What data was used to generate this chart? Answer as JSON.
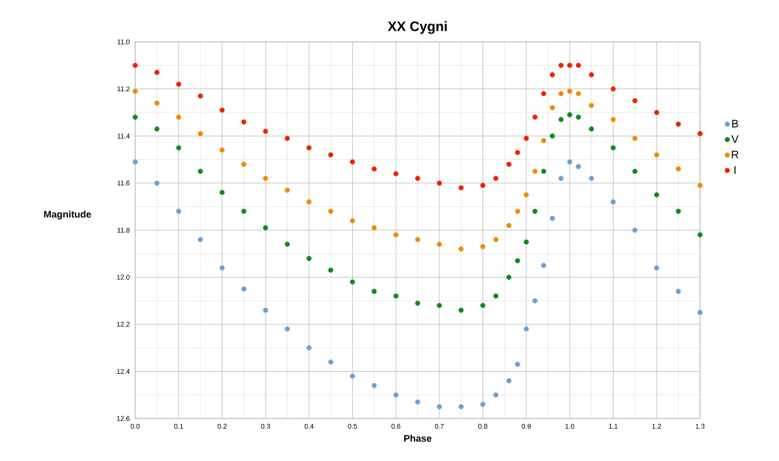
{
  "chart_data": {
    "type": "scatter",
    "title": "XX Cygni",
    "xlabel": "Phase",
    "ylabel": "Magnitude",
    "x": [
      0.0,
      0.05,
      0.1,
      0.15,
      0.2,
      0.25,
      0.3,
      0.35,
      0.4,
      0.45,
      0.5,
      0.55,
      0.6,
      0.65,
      0.7,
      0.75,
      0.8,
      0.83,
      0.86,
      0.88,
      0.9,
      0.92,
      0.94,
      0.96,
      0.98,
      1.0,
      1.02,
      1.05,
      1.1,
      1.15,
      1.2,
      1.25,
      1.3
    ],
    "series": [
      {
        "name": "B",
        "color": "#6e9fd1",
        "values": [
          11.51,
          11.6,
          11.72,
          11.84,
          11.96,
          12.05,
          12.14,
          12.22,
          12.3,
          12.36,
          12.42,
          12.46,
          12.5,
          12.53,
          12.55,
          12.55,
          12.54,
          12.5,
          12.44,
          12.37,
          12.22,
          12.1,
          11.95,
          11.75,
          11.58,
          11.51,
          11.53,
          11.58,
          11.68,
          11.8,
          11.96,
          12.06,
          12.15
        ]
      },
      {
        "name": "V",
        "color": "#0f8a1a",
        "values": [
          11.32,
          11.37,
          11.45,
          11.55,
          11.64,
          11.72,
          11.79,
          11.86,
          11.92,
          11.97,
          12.02,
          12.06,
          12.08,
          12.11,
          12.12,
          12.14,
          12.12,
          12.08,
          12.0,
          11.93,
          11.85,
          11.72,
          11.55,
          11.4,
          11.33,
          11.31,
          11.32,
          11.37,
          11.45,
          11.55,
          11.65,
          11.72,
          11.82
        ]
      },
      {
        "name": "R",
        "color": "#ef8a09",
        "values": [
          11.21,
          11.26,
          11.32,
          11.39,
          11.46,
          11.52,
          11.58,
          11.63,
          11.68,
          11.72,
          11.76,
          11.79,
          11.82,
          11.84,
          11.86,
          11.88,
          11.87,
          11.84,
          11.78,
          11.72,
          11.65,
          11.55,
          11.42,
          11.28,
          11.22,
          11.21,
          11.22,
          11.27,
          11.33,
          11.41,
          11.48,
          11.54,
          11.61
        ]
      },
      {
        "name": "I",
        "color": "#ee2200",
        "values": [
          11.1,
          11.13,
          11.18,
          11.23,
          11.29,
          11.34,
          11.38,
          11.41,
          11.45,
          11.48,
          11.51,
          11.54,
          11.56,
          11.58,
          11.6,
          11.62,
          11.61,
          11.58,
          11.52,
          11.47,
          11.41,
          11.32,
          11.22,
          11.14,
          11.1,
          11.1,
          11.1,
          11.14,
          11.2,
          11.25,
          11.3,
          11.35,
          11.39
        ]
      }
    ],
    "xlim": [
      0.0,
      1.3
    ],
    "xticks": [
      {
        "value": 0.0,
        "label": "0.0"
      },
      {
        "value": 0.1,
        "label": "0.1"
      },
      {
        "value": 0.2,
        "label": "0.2"
      },
      {
        "value": 0.3,
        "label": "0.3"
      },
      {
        "value": 0.4,
        "label": "0.4"
      },
      {
        "value": 0.5,
        "label": "0.5"
      },
      {
        "value": 0.6,
        "label": "0.6"
      },
      {
        "value": 0.7,
        "label": "0.7"
      },
      {
        "value": 0.8,
        "label": "0.8"
      },
      {
        "value": 0.9,
        "label": "0.9"
      },
      {
        "value": 1.0,
        "label": "1.0"
      },
      {
        "value": 1.1,
        "label": "1.1"
      },
      {
        "value": 1.2,
        "label": "1.2"
      },
      {
        "value": 1.3,
        "label": "1.3"
      }
    ],
    "ylim": [
      12.6,
      11.0
    ],
    "yticks": [
      {
        "value": 11.0,
        "label": "11.0"
      },
      {
        "value": 11.2,
        "label": "11.2"
      },
      {
        "value": 11.4,
        "label": "11.4"
      },
      {
        "value": 11.6,
        "label": "11.6"
      },
      {
        "value": 11.8,
        "label": "11.8"
      },
      {
        "value": 12.0,
        "label": "12.0"
      },
      {
        "value": 12.2,
        "label": "12.2"
      },
      {
        "value": 12.4,
        "label": "12.4"
      },
      {
        "value": 12.6,
        "label": "12.6"
      }
    ],
    "grid": true,
    "legend": "right",
    "marker": "circle"
  }
}
